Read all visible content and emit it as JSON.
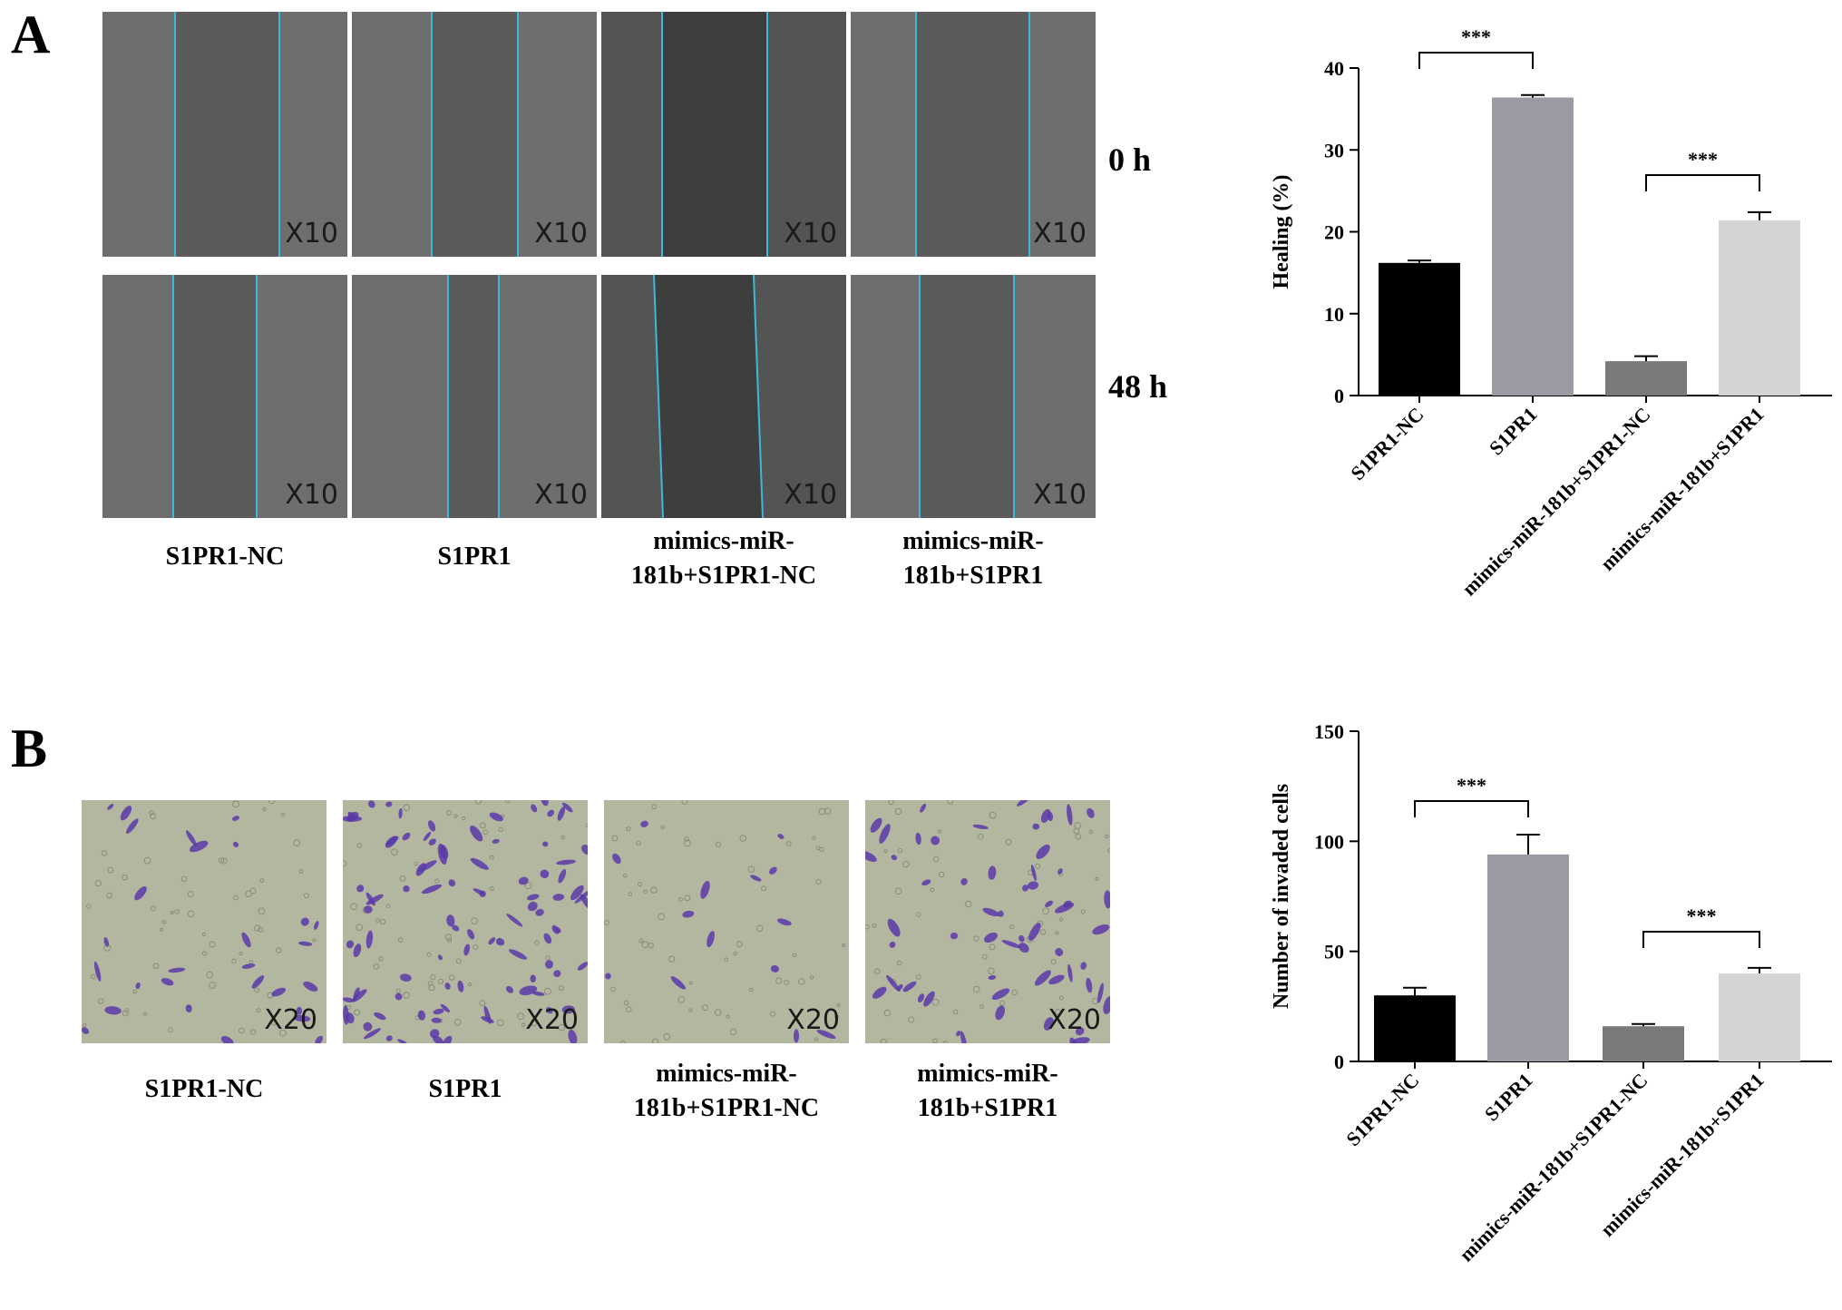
{
  "panel_a": {
    "letter": "A",
    "time_labels": [
      "0 h",
      "48 h"
    ],
    "magnification": "X10",
    "group_labels": [
      "S1PR1-NC",
      "S1PR1",
      "mimics-miR-\n181b+S1PR1-NC",
      "mimics-miR-\n181b+S1PR1"
    ],
    "wound_line_color": "#3fb8d8"
  },
  "panel_b": {
    "letter": "B",
    "magnification": "X20",
    "group_labels": [
      "S1PR1-NC",
      "S1PR1",
      "mimics-miR-\n181b+S1PR1-NC",
      "mimics-miR-\n181b+S1PR1"
    ],
    "stain_color": "#5a3aa8"
  },
  "chart_data": [
    {
      "type": "bar",
      "title": "",
      "xlabel": "",
      "ylabel": "Healing (%)",
      "categories": [
        "S1PR1-NC",
        "S1PR1",
        "mimics-miR-181b+S1PR1-NC",
        "mimics-miR-181b+S1PR1"
      ],
      "values": [
        16.2,
        36.4,
        4.2,
        21.4
      ],
      "errors": [
        0.3,
        0.3,
        0.6,
        1.0
      ],
      "bar_colors": [
        "#000000",
        "#9a9aa2",
        "#7a7a7a",
        "#d4d4d4"
      ],
      "ylim": [
        0,
        40
      ],
      "yticks": [
        0,
        10,
        20,
        30,
        40
      ],
      "grid": false,
      "significance": [
        {
          "from": 0,
          "to": 1,
          "label": "***"
        },
        {
          "from": 2,
          "to": 3,
          "label": "***"
        }
      ]
    },
    {
      "type": "bar",
      "title": "",
      "xlabel": "",
      "ylabel": "Number of invaded cells",
      "categories": [
        "S1PR1-NC",
        "S1PR1",
        "mimics-miR-181b+S1PR1-NC",
        "mimics-miR-181b+S1PR1"
      ],
      "values": [
        30,
        94,
        16,
        40
      ],
      "errors": [
        3.5,
        9,
        1,
        2.5
      ],
      "bar_colors": [
        "#000000",
        "#9a9aa2",
        "#7a7a7a",
        "#d4d4d4"
      ],
      "ylim": [
        0,
        150
      ],
      "yticks": [
        0,
        50,
        100,
        150
      ],
      "grid": false,
      "significance": [
        {
          "from": 0,
          "to": 1,
          "label": "***"
        },
        {
          "from": 2,
          "to": 3,
          "label": "***"
        }
      ]
    }
  ]
}
